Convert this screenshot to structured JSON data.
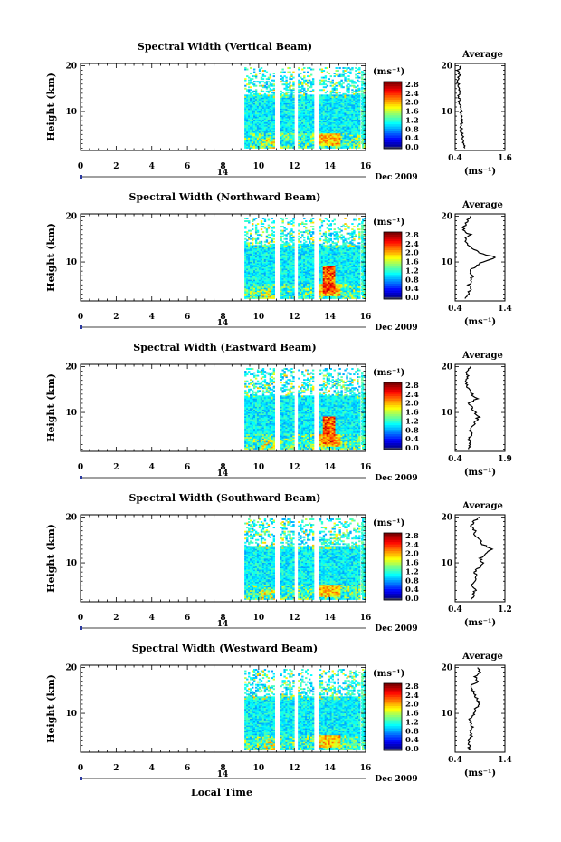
{
  "figure": {
    "xlabel": "Local Time",
    "date_label": "Dec 2009",
    "day_label": "14",
    "avg_title": "Average",
    "avg_unit": "(ms⁻¹)",
    "cbar_unit": "(ms⁻¹)",
    "ylabel": "Height (km)"
  },
  "chart_data": [
    {
      "type": "heatmap",
      "title": "Spectral Width (Vertical Beam)",
      "xlabel": "Local Time",
      "ylabel": "Height (km)",
      "x_ticks": [
        "0",
        "2",
        "4",
        "6",
        "8",
        "10",
        "12",
        "14",
        "16"
      ],
      "y_ticks": [
        "10",
        "20"
      ],
      "xlim": [
        0,
        16
      ],
      "ylim": [
        1.5,
        20.5
      ],
      "colorbar": {
        "ticks": [
          "0.0",
          "0.4",
          "0.8",
          "1.2",
          "1.6",
          "2.0",
          "2.4",
          "2.8"
        ],
        "range": [
          0,
          3.0
        ]
      },
      "data_extent_hours": [
        9.2,
        15.9
      ],
      "average_profile": {
        "xlim": [
          0.4,
          1.6
        ],
        "x_ticks": [
          "0.4",
          "1.6"
        ],
        "y_ticks": [
          "10",
          "20"
        ],
        "height_km": [
          2,
          3,
          4,
          5,
          6,
          7,
          8,
          9,
          10,
          11,
          12,
          13,
          14,
          15,
          16,
          17,
          18,
          19,
          20
        ],
        "value": [
          0.66,
          0.62,
          0.6,
          0.57,
          0.55,
          0.55,
          0.55,
          0.56,
          0.54,
          0.52,
          0.5,
          0.5,
          0.48,
          0.5,
          0.47,
          0.45,
          0.5,
          0.45,
          0.55
        ]
      }
    },
    {
      "type": "heatmap",
      "title": "Spectral Width (Northward Beam)",
      "xlabel": "Local Time",
      "ylabel": "Height (km)",
      "x_ticks": [
        "0",
        "2",
        "4",
        "6",
        "8",
        "10",
        "12",
        "14",
        "16"
      ],
      "y_ticks": [
        "10",
        "20"
      ],
      "xlim": [
        0,
        16
      ],
      "ylim": [
        1.5,
        20.5
      ],
      "colorbar": {
        "ticks": [
          "0.0",
          "0.4",
          "0.8",
          "1.2",
          "1.6",
          "2.0",
          "2.4",
          "2.8"
        ],
        "range": [
          0,
          3.0
        ]
      },
      "data_extent_hours": [
        9.2,
        15.9
      ],
      "average_profile": {
        "xlim": [
          0.4,
          1.4
        ],
        "x_ticks": [
          "0.4",
          "1.4"
        ],
        "y_ticks": [
          "10",
          "20"
        ],
        "height_km": [
          2,
          3,
          4,
          5,
          6,
          7,
          8,
          9,
          10,
          11,
          12,
          13,
          14,
          15,
          16,
          17,
          18,
          19,
          20
        ],
        "value": [
          0.62,
          0.66,
          0.7,
          0.68,
          0.72,
          0.75,
          0.7,
          0.8,
          0.95,
          1.2,
          0.9,
          0.72,
          0.62,
          0.6,
          0.7,
          0.55,
          0.6,
          0.65,
          0.7
        ]
      }
    },
    {
      "type": "heatmap",
      "title": "Spectral Width (Eastward Beam)",
      "xlabel": "Local Time",
      "ylabel": "Height (km)",
      "x_ticks": [
        "0",
        "2",
        "4",
        "6",
        "8",
        "10",
        "12",
        "14",
        "16"
      ],
      "y_ticks": [
        "10",
        "20"
      ],
      "xlim": [
        0,
        16
      ],
      "ylim": [
        1.5,
        20.5
      ],
      "colorbar": {
        "ticks": [
          "0.0",
          "0.4",
          "0.8",
          "1.2",
          "1.6",
          "2.0",
          "2.4",
          "2.8"
        ],
        "range": [
          0,
          3.0
        ]
      },
      "data_extent_hours": [
        9.2,
        15.9
      ],
      "average_profile": {
        "xlim": [
          0.4,
          1.9
        ],
        "x_ticks": [
          "0.4",
          "1.9"
        ],
        "y_ticks": [
          "10",
          "20"
        ],
        "height_km": [
          2,
          3,
          4,
          5,
          6,
          7,
          8,
          9,
          10,
          11,
          12,
          13,
          14,
          15,
          16,
          17,
          18,
          19,
          20
        ],
        "value": [
          0.8,
          0.85,
          0.8,
          0.9,
          0.85,
          0.95,
          1.0,
          1.1,
          1.0,
          0.9,
          0.8,
          1.05,
          0.9,
          0.8,
          0.75,
          0.7,
          0.8,
          0.75,
          0.85
        ]
      }
    },
    {
      "type": "heatmap",
      "title": "Spectral Width (Southward Beam)",
      "xlabel": "Local Time",
      "ylabel": "Height (km)",
      "x_ticks": [
        "0",
        "2",
        "4",
        "6",
        "8",
        "10",
        "12",
        "14",
        "16"
      ],
      "y_ticks": [
        "10",
        "20"
      ],
      "xlim": [
        0,
        16
      ],
      "ylim": [
        1.5,
        20.5
      ],
      "colorbar": {
        "ticks": [
          "0.0",
          "0.4",
          "0.8",
          "1.2",
          "1.6",
          "2.0",
          "2.4",
          "2.8"
        ],
        "range": [
          0,
          3.0
        ]
      },
      "data_extent_hours": [
        9.2,
        15.9
      ],
      "average_profile": {
        "xlim": [
          0.4,
          1.2
        ],
        "x_ticks": [
          "0.4",
          "1.2"
        ],
        "y_ticks": [
          "10",
          "20"
        ],
        "height_km": [
          2,
          3,
          4,
          5,
          6,
          7,
          8,
          9,
          10,
          11,
          12,
          13,
          14,
          15,
          16,
          17,
          18,
          19,
          20
        ],
        "value": [
          0.65,
          0.7,
          0.72,
          0.68,
          0.7,
          0.75,
          0.72,
          0.78,
          0.85,
          0.8,
          0.9,
          1.0,
          0.85,
          0.8,
          0.7,
          0.72,
          0.65,
          0.7,
          0.8
        ]
      }
    },
    {
      "type": "heatmap",
      "title": "Spectral Width (Westward Beam)",
      "xlabel": "Local Time",
      "ylabel": "Height (km)",
      "x_ticks": [
        "0",
        "2",
        "4",
        "6",
        "8",
        "10",
        "12",
        "14",
        "16"
      ],
      "y_ticks": [
        "10",
        "20"
      ],
      "xlim": [
        0,
        16
      ],
      "ylim": [
        1.5,
        20.5
      ],
      "colorbar": {
        "ticks": [
          "0.0",
          "0.4",
          "0.8",
          "1.2",
          "1.6",
          "2.0",
          "2.4",
          "2.8"
        ],
        "range": [
          0,
          3.0
        ]
      },
      "data_extent_hours": [
        9.2,
        15.9
      ],
      "average_profile": {
        "xlim": [
          0.4,
          1.4
        ],
        "x_ticks": [
          "0.4",
          "1.4"
        ],
        "y_ticks": [
          "10",
          "20"
        ],
        "height_km": [
          2,
          3,
          4,
          5,
          6,
          7,
          8,
          9,
          10,
          11,
          12,
          13,
          14,
          15,
          16,
          17,
          18,
          19,
          20
        ],
        "value": [
          0.68,
          0.7,
          0.66,
          0.72,
          0.7,
          0.75,
          0.72,
          0.7,
          0.78,
          0.8,
          0.9,
          0.85,
          0.8,
          0.75,
          0.72,
          0.85,
          0.8,
          0.9,
          0.85
        ]
      }
    }
  ]
}
